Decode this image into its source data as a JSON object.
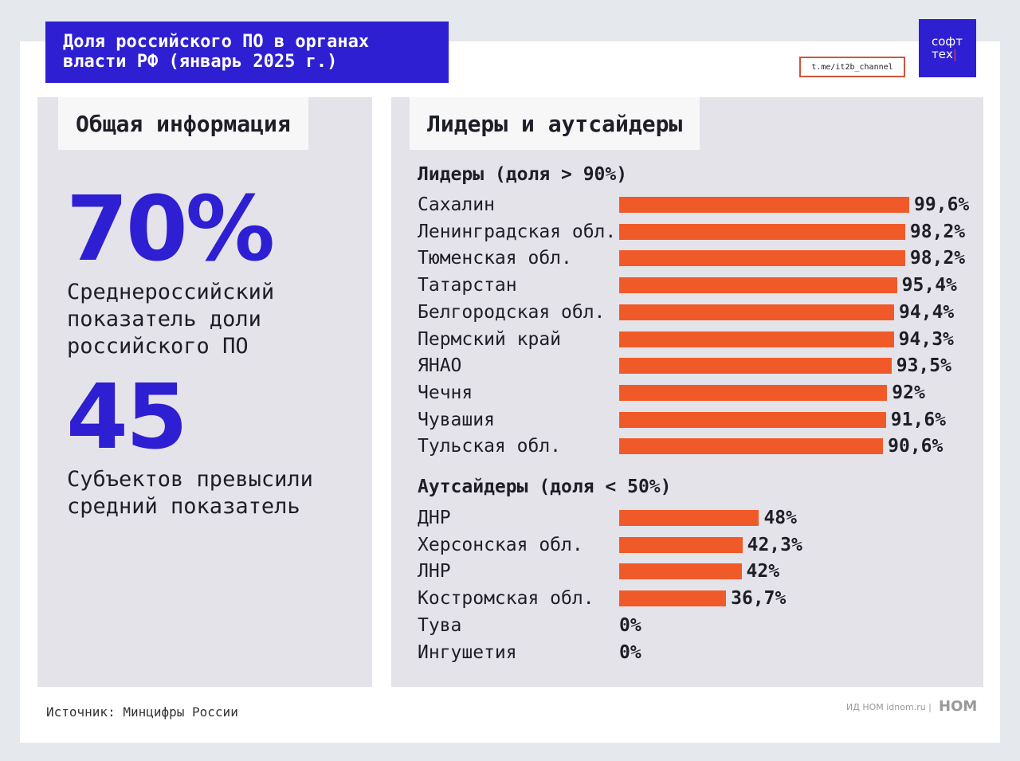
{
  "header": {
    "title": "Доля российского ПО в органах власти РФ (январь 2025 г.)",
    "link": "t.me/it2b_channel",
    "logo_line1": "софт",
    "logo_line2": "тех"
  },
  "left": {
    "tab": "Общая информация",
    "stat1": "70%",
    "stat1_desc": "Среднероссийский показатель доли российского ПО",
    "stat2": "45",
    "stat2_desc": "Субъектов превысили средний показатель"
  },
  "chart_data": {
    "type": "bar",
    "orientation": "horizontal",
    "title": "Лидеры и аутсайдеры",
    "colors": {
      "bar": "#f05a28",
      "accent": "#2e1fd3"
    },
    "groups": [
      {
        "name": "Лидеры (доля > 90%)",
        "categories": [
          "Сахалин",
          "Ленинградская обл.",
          "Тюменская обл.",
          "Татарстан",
          "Белгородская обл.",
          "Пермский край",
          "ЯНАО",
          "Чечня",
          "Чувашия",
          "Тульская обл."
        ],
        "values": [
          99.6,
          98.2,
          98.2,
          95.4,
          94.4,
          94.3,
          93.5,
          92,
          91.6,
          90.6
        ],
        "labels": [
          "99,6%",
          "98,2%",
          "98,2%",
          "95,4%",
          "94,4%",
          "94,3%",
          "93,5%",
          "92%",
          "91,6%",
          "90,6%"
        ]
      },
      {
        "name": "Аутсайдеры (доля < 50%)",
        "categories": [
          "ДНР",
          "Херсонская обл.",
          "ЛНР",
          "Костромская обл.",
          "Тува",
          "Ингушетия"
        ],
        "values": [
          48,
          42.3,
          42,
          36.7,
          0,
          0
        ],
        "labels": [
          "48%",
          "42,3%",
          "42%",
          "36,7%",
          "0%",
          "0%"
        ]
      }
    ],
    "xlim": [
      0,
      100
    ]
  },
  "footer": {
    "source": "Источник: Минцифры России",
    "credit": "ИД НОМ idnom.ru  |",
    "brand": "НОМ"
  }
}
